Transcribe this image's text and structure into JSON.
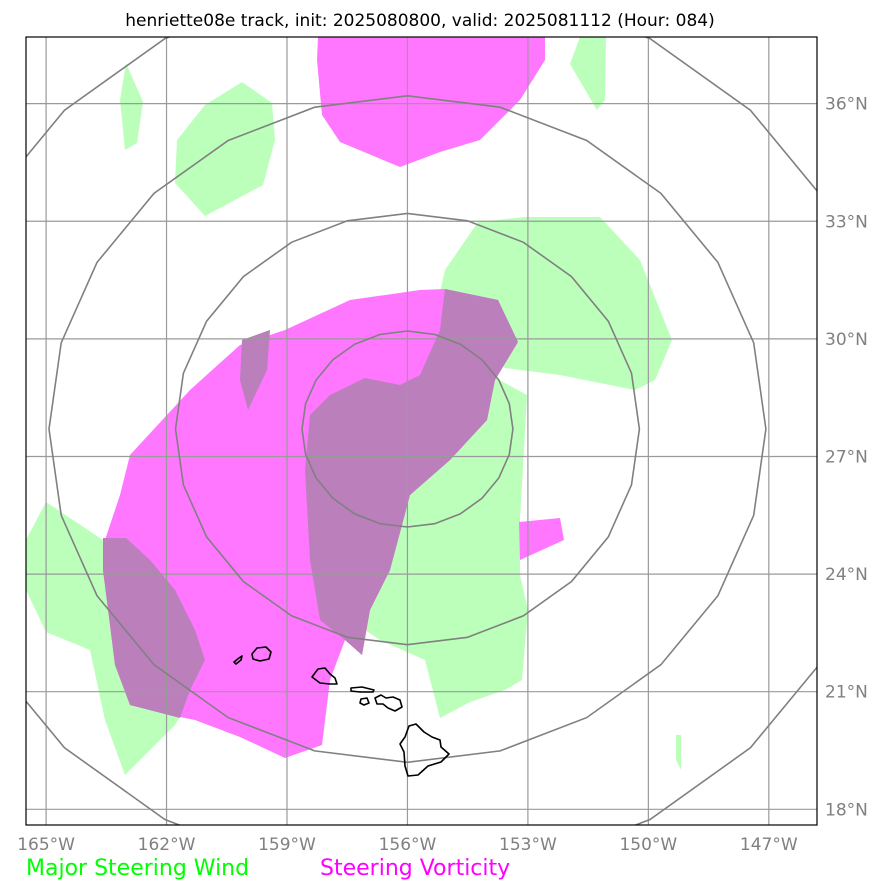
{
  "title": "henriette08e track, init: 2025080800, valid: 2025081112 (Hour: 084)",
  "colors": {
    "wind": "#bbffbb",
    "vorticity": "#ff77ff",
    "overlap": "#bb7fbb",
    "legend_wind": "#00ff00",
    "legend_vorticity": "#ff00ff",
    "grid": "#9a9a9a",
    "rings": "#808080"
  },
  "map": {
    "lon_range": [
      -165.5,
      -145.8
    ],
    "lat_range": [
      17.6,
      37.7
    ],
    "lon_ticks": [
      {
        "value": -165,
        "label": "165°W"
      },
      {
        "value": -162,
        "label": "162°W"
      },
      {
        "value": -159,
        "label": "159°W"
      },
      {
        "value": -156,
        "label": "156°W"
      },
      {
        "value": -153,
        "label": "153°W"
      },
      {
        "value": -150,
        "label": "150°W"
      },
      {
        "value": -147,
        "label": "147°W"
      }
    ],
    "lat_ticks": [
      {
        "value": 18,
        "label": "18°N"
      },
      {
        "value": 21,
        "label": "21°N"
      },
      {
        "value": 24,
        "label": "24°N"
      },
      {
        "value": 27,
        "label": "27°N"
      },
      {
        "value": 30,
        "label": "30°N"
      },
      {
        "value": 33,
        "label": "33°N"
      },
      {
        "value": 36,
        "label": "36°N"
      }
    ],
    "ring_center": {
      "lon": -156.0,
      "lat": 27.7
    },
    "ring_radii_deg": [
      2.5,
      5.5,
      8.5,
      11.5
    ]
  },
  "legend": {
    "wind_label": "Major Steering Wind",
    "vorticity_label": "Steering Vorticity"
  }
}
